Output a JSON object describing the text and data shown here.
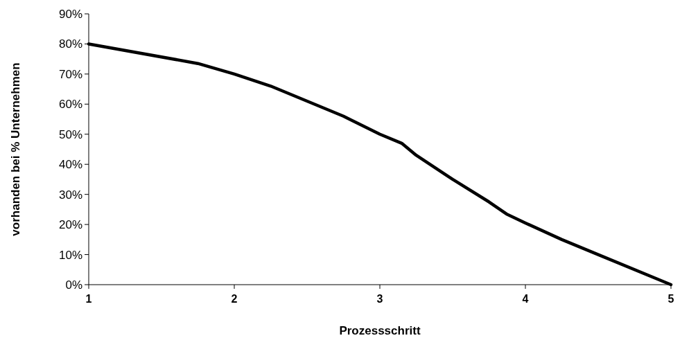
{
  "chart_data": {
    "type": "line",
    "xlabel": "Prozessschritt",
    "ylabel": "vorhanden bei % Unternehmen",
    "series": [
      {
        "color": "#000000",
        "x": [
          1,
          1.75,
          2,
          2.25,
          2.5,
          2.75,
          3,
          3.15,
          3.25,
          3.5,
          3.75,
          3.87,
          4,
          4.25,
          4.5,
          5
        ],
        "values": [
          80,
          73.5,
          70,
          66,
          61,
          56,
          50,
          47,
          43,
          35,
          27.5,
          23.5,
          20.5,
          15,
          10,
          0
        ]
      }
    ],
    "xlim": [
      1,
      5
    ],
    "xticks": [
      1,
      2,
      3,
      4,
      5
    ],
    "ylim": [
      0,
      90
    ],
    "yticks": [
      {
        "value": 0,
        "label": "0%"
      },
      {
        "value": 10,
        "label": "10%"
      },
      {
        "value": 20,
        "label": "20%"
      },
      {
        "value": 30,
        "label": "30%"
      },
      {
        "value": 40,
        "label": "40%"
      },
      {
        "value": 50,
        "label": "50%"
      },
      {
        "value": 60,
        "label": "60%"
      },
      {
        "value": 70,
        "label": "70%"
      },
      {
        "value": 80,
        "label": "80%"
      },
      {
        "value": 90,
        "label": "90%"
      }
    ],
    "grid": false,
    "marker": "none",
    "line_style": "solid"
  }
}
